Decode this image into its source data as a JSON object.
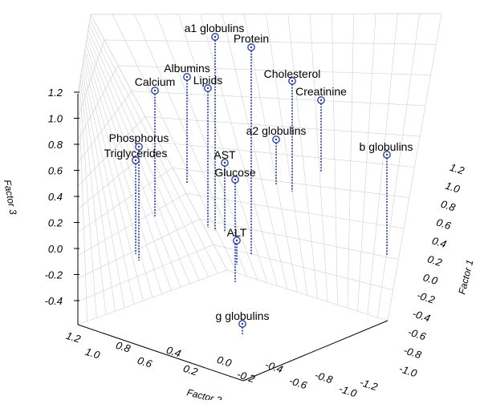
{
  "chart_data": {
    "type": "scatter3d",
    "x_label": "Factor 2",
    "y_label": "Factor 1",
    "z_label": "Factor 3",
    "x_ticks": [
      "1.2",
      "1.0",
      "0.8",
      "0.6",
      "0.4",
      "0.2",
      "0.0",
      "-0.2",
      "-0.4",
      "-0.6",
      "-0.8",
      "-1.0",
      "-1.2"
    ],
    "y_ticks": [
      "1.2",
      "1.0",
      "0.8",
      "0.6",
      "0.4",
      "0.2",
      "0.0",
      "-0.2",
      "-0.4",
      "-0.6",
      "-0.8",
      "-1.0"
    ],
    "z_ticks": [
      "1.2",
      "1.0",
      "0.8",
      "0.6",
      "0.4",
      "0.2",
      "0.0",
      "-0.2",
      "-0.4"
    ],
    "points": [
      {
        "label": "a1 globulins",
        "label_pos": "above"
      },
      {
        "label": "Protein",
        "label_pos": "above"
      },
      {
        "label": "Albumins",
        "label_pos": "above"
      },
      {
        "label": "Lipids",
        "label_pos": "above"
      },
      {
        "label": "Calcium",
        "label_pos": "above"
      },
      {
        "label": "Cholesterol",
        "label_pos": "above"
      },
      {
        "label": "Creatinine",
        "label_pos": "above"
      },
      {
        "label": "a2 globulins",
        "label_pos": "above"
      },
      {
        "label": "b globulins",
        "label_pos": "above"
      },
      {
        "label": "Phosphorus",
        "label_pos": "above"
      },
      {
        "label": "Triglycerides",
        "label_pos": "above"
      },
      {
        "label": "AST",
        "label_pos": "above"
      },
      {
        "label": "Glucose",
        "label_pos": "above"
      },
      {
        "label": "ALT",
        "label_pos": "above"
      },
      {
        "label": "g globulins",
        "label_pos": "above"
      }
    ],
    "point_color": "#2038a0",
    "grid": true
  }
}
